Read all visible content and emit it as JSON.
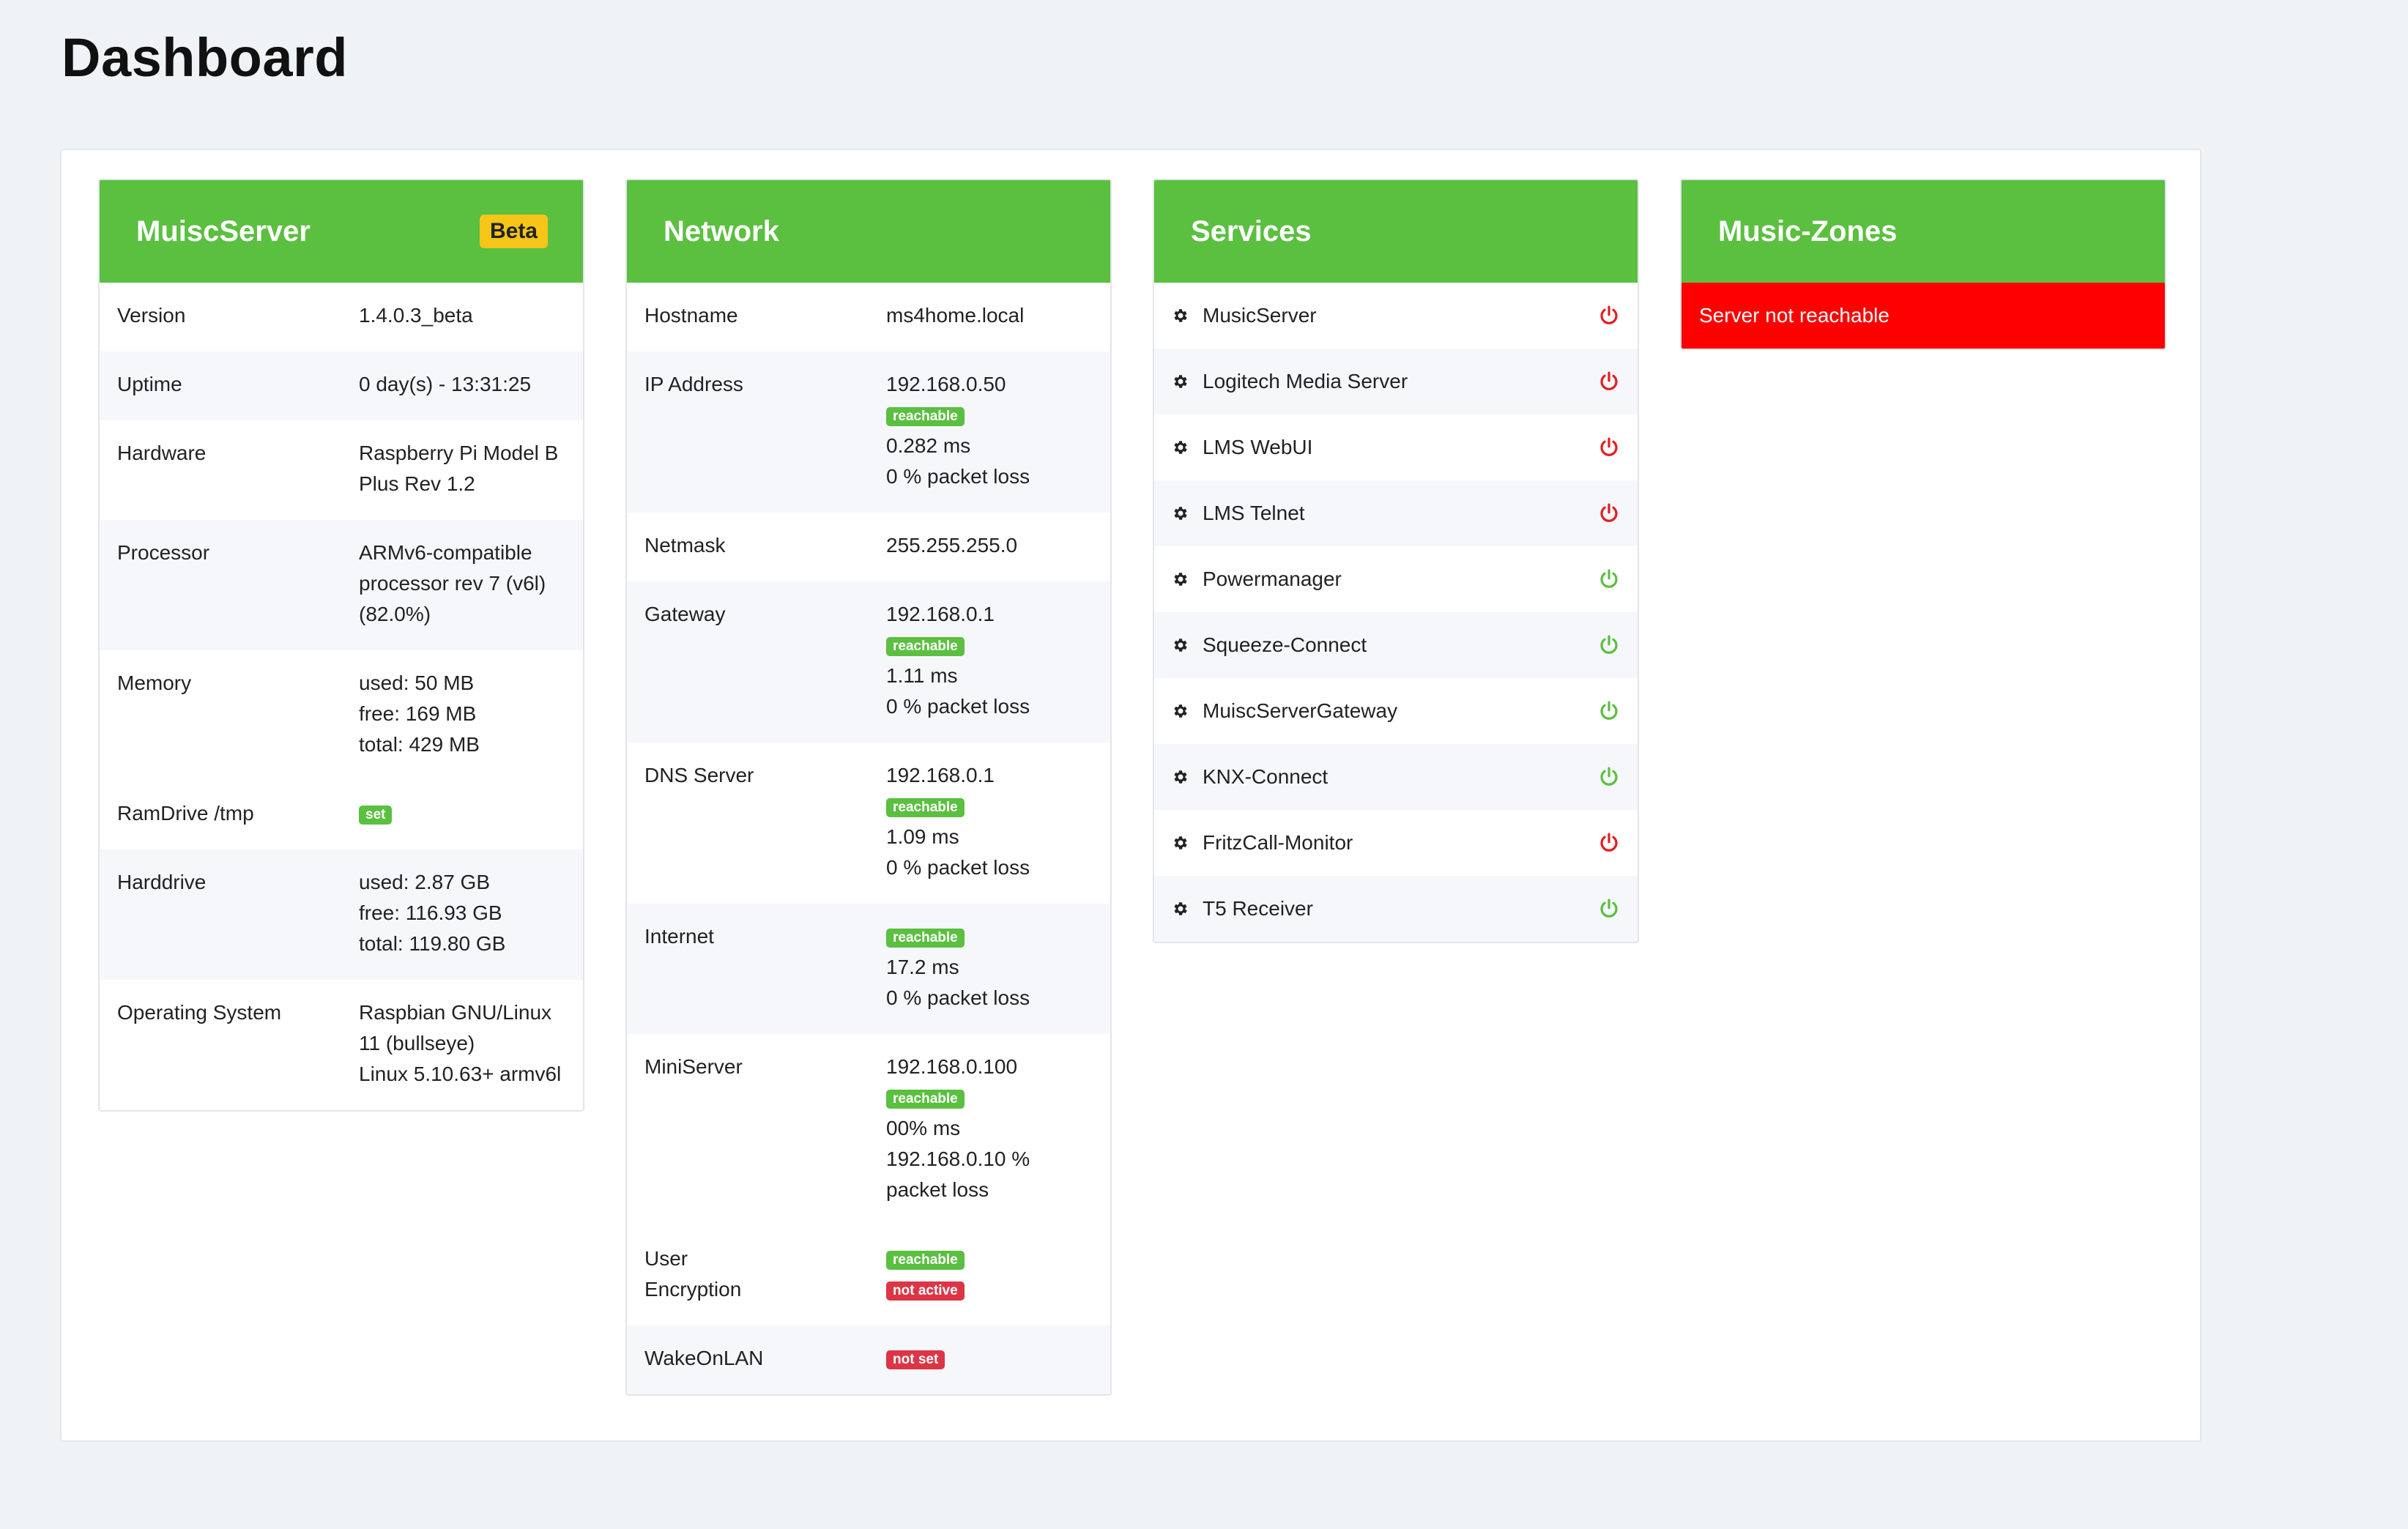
{
  "page": {
    "title": "Dashboard"
  },
  "colors": {
    "header_green": "#5bbf40",
    "badge_green": "#5bbf40",
    "badge_red": "#dc3545",
    "power_on": "#5bbf40",
    "power_off": "#e02020",
    "alert_red": "#ff0000"
  },
  "server": {
    "title": "MuiscServer",
    "badge": "Beta",
    "rows": [
      {
        "label": "Version",
        "lines": [
          "1.4.0.3_beta"
        ]
      },
      {
        "label": "Uptime",
        "lines": [
          "0 day(s) - 13:31:25"
        ]
      },
      {
        "label": "Hardware",
        "lines": [
          "Raspberry Pi Model B",
          "Plus Rev 1.2"
        ]
      },
      {
        "label": "Processor",
        "lines": [
          "ARMv6-compatible",
          "processor rev 7 (v6l)",
          "(82.0%)"
        ]
      },
      {
        "label": "Memory",
        "lines": [
          "used: 50 MB",
          "free: 169 MB",
          "total: 429 MB"
        ]
      },
      {
        "label": "RamDrive /tmp",
        "badge": "set"
      },
      {
        "label": "Harddrive",
        "lines": [
          "used: 2.87 GB",
          "free: 116.93 GB",
          "total: 119.80 GB"
        ]
      },
      {
        "label": "Operating System",
        "lines": [
          "Raspbian GNU/Linux",
          "11 (bullseye)",
          "Linux 5.10.63+ armv6l"
        ]
      }
    ]
  },
  "network": {
    "title": "Network",
    "hostname": {
      "label": "Hostname",
      "value": "ms4home.local"
    },
    "ip": {
      "label": "IP Address",
      "value": "192.168.0.50",
      "badge": "reachable",
      "ms": "0.282 ms",
      "loss": "0 % packet loss"
    },
    "netmask": {
      "label": "Netmask",
      "value": "255.255.255.0"
    },
    "gateway": {
      "label": "Gateway",
      "value": "192.168.0.1",
      "badge": "reachable",
      "ms": "1.11 ms",
      "loss": "0 % packet loss"
    },
    "dns": {
      "label": "DNS Server",
      "value": "192.168.0.1",
      "badge": "reachable",
      "ms": "1.09 ms",
      "loss": "0 % packet loss"
    },
    "internet": {
      "label": "Internet",
      "badge": "reachable",
      "ms": "17.2 ms",
      "loss": "0 % packet loss"
    },
    "miniserver": {
      "label": "MiniServer",
      "value": "192.168.0.100",
      "badge": "reachable",
      "ms": "00% ms",
      "loss_1": "192.168.0.10 %",
      "loss_2": "packet loss"
    },
    "user_enc": {
      "label_1": "User",
      "label_2": "Encryption",
      "badge_1": "reachable",
      "badge_2": "not active"
    },
    "wol": {
      "label": "WakeOnLAN",
      "badge": "not set"
    }
  },
  "services": {
    "title": "Services",
    "items": [
      {
        "name": "MusicServer",
        "status": "off"
      },
      {
        "name": "Logitech Media Server",
        "status": "off"
      },
      {
        "name": "LMS WebUI",
        "status": "off"
      },
      {
        "name": "LMS Telnet",
        "status": "off"
      },
      {
        "name": "Powermanager",
        "status": "on"
      },
      {
        "name": "Squeeze-Connect",
        "status": "on"
      },
      {
        "name": "MuiscServerGateway",
        "status": "on"
      },
      {
        "name": "KNX-Connect",
        "status": "on"
      },
      {
        "name": "FritzCall-Monitor",
        "status": "off"
      },
      {
        "name": "T5 Receiver",
        "status": "on"
      }
    ]
  },
  "zones": {
    "title": "Music-Zones",
    "message": "Server not reachable"
  }
}
